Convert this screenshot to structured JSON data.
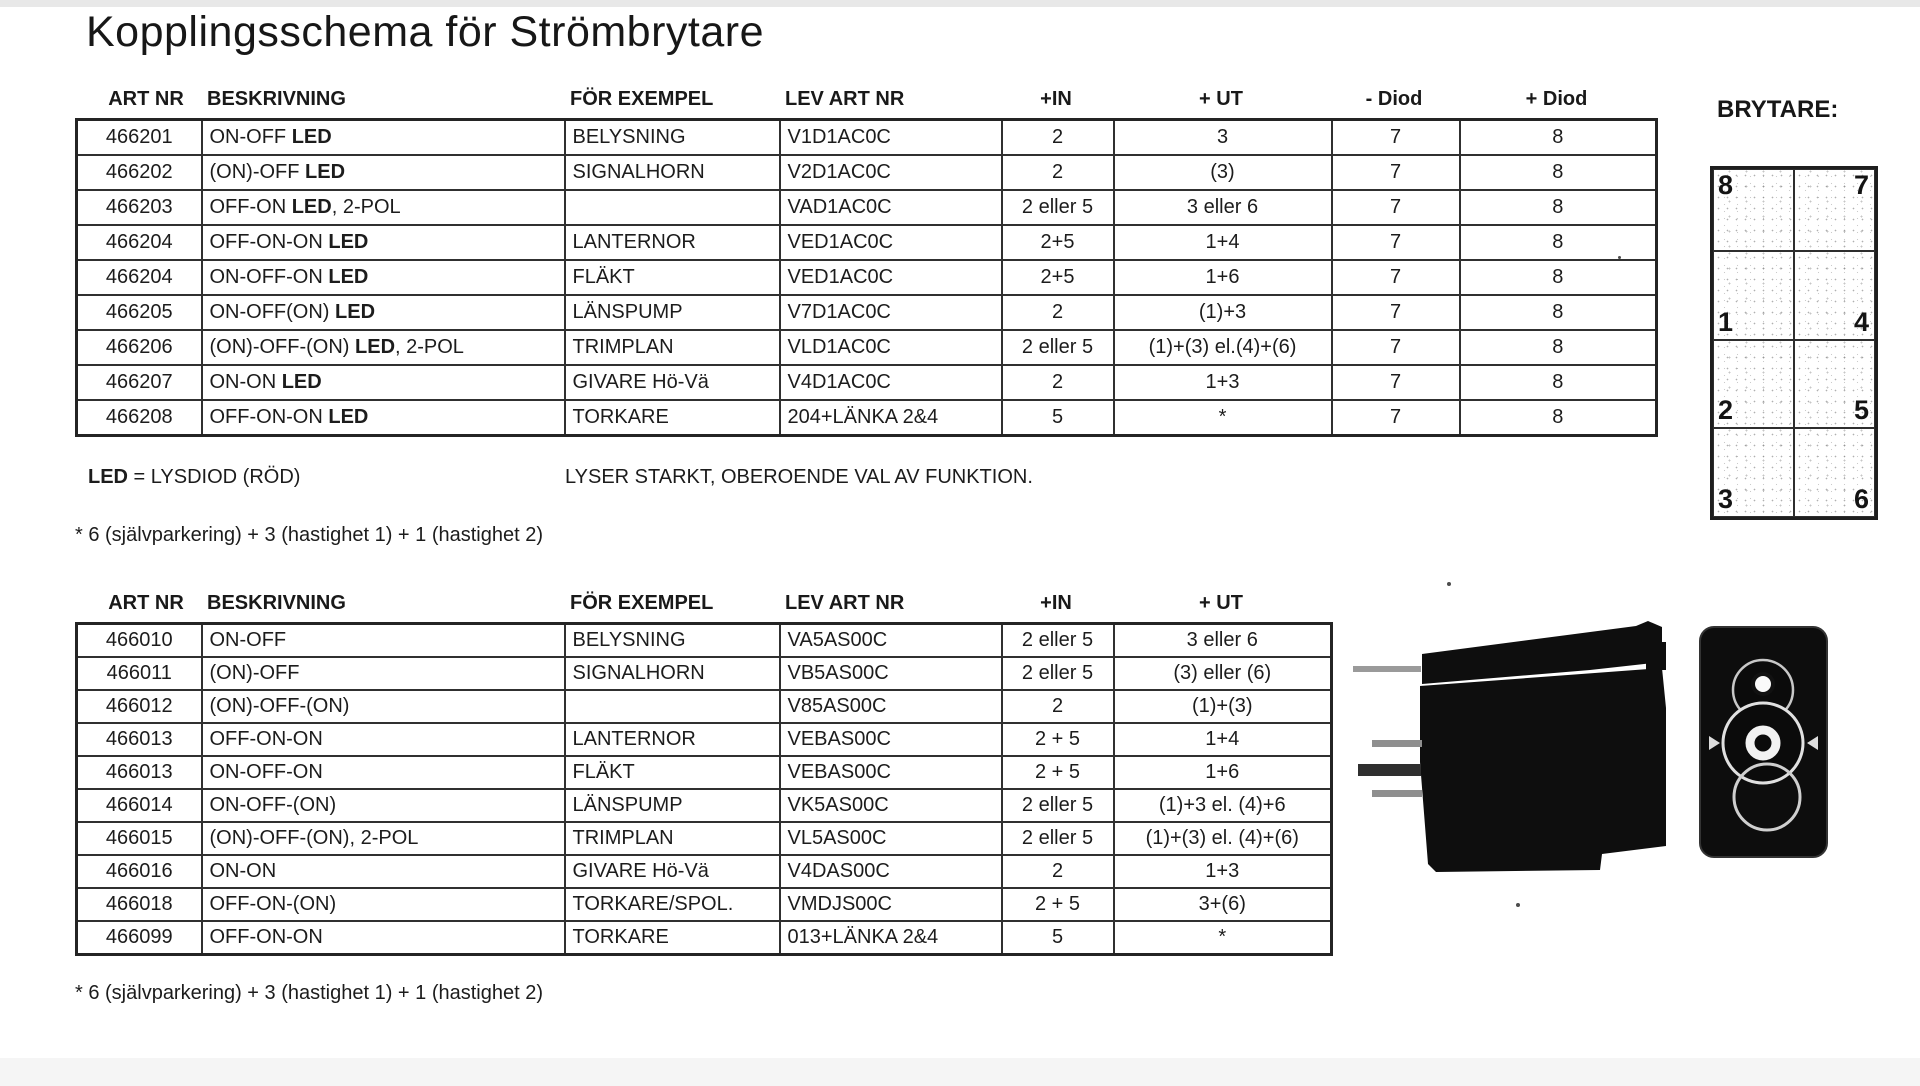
{
  "page": {
    "title": "Kopplingsschema för Strömbrytare"
  },
  "table1": {
    "headers": [
      "ART NR",
      "BESKRIVNING",
      "FÖR EXEMPEL",
      "LEV ART NR",
      "+IN",
      "+ UT",
      "- Diod",
      "+ Diod"
    ],
    "rows": [
      [
        "466201",
        "ON-OFF LED",
        "BELYSNING",
        "V1D1AC0C",
        "2",
        "3",
        "7",
        "8"
      ],
      [
        "466202",
        "(ON)-OFF LED",
        "SIGNALHORN",
        "V2D1AC0C",
        "2",
        "(3)",
        "7",
        "8"
      ],
      [
        "466203",
        "OFF-ON LED, 2-POL",
        "",
        "VAD1AC0C",
        "2 eller 5",
        "3 eller 6",
        "7",
        "8"
      ],
      [
        "466204",
        "OFF-ON-ON LED",
        "LANTERNOR",
        "VED1AC0C",
        "2+5",
        "1+4",
        "7",
        "8"
      ],
      [
        "466204",
        "ON-OFF-ON LED",
        "FLÄKT",
        "VED1AC0C",
        "2+5",
        "1+6",
        "7",
        "8"
      ],
      [
        "466205",
        "ON-OFF(ON) LED",
        "LÄNSPUMP",
        "V7D1AC0C",
        "2",
        "(1)+3",
        "7",
        "8"
      ],
      [
        "466206",
        "(ON)-OFF-(ON) LED, 2-POL",
        "TRIMPLAN",
        "VLD1AC0C",
        "2 eller 5",
        "(1)+(3) el.(4)+(6)",
        "7",
        "8"
      ],
      [
        "466207",
        "ON-ON LED",
        "GIVARE Hö-Vä",
        "V4D1AC0C",
        "2",
        "1+3",
        "7",
        "8"
      ],
      [
        "466208",
        "OFF-ON-ON LED",
        "TORKARE",
        "204+LÄNKA 2&4",
        "5",
        "*",
        "7",
        "8"
      ]
    ]
  },
  "notes": {
    "led_label": "LED = LYSDIOD (RÖD)",
    "led_note": "LYSER STARKT, OBEROENDE VAL AV FUNKTION.",
    "footnote1": "* 6 (självparkering) + 3 (hastighet 1) + 1 (hastighet 2)",
    "footnote2": "* 6 (självparkering) + 3 (hastighet 1) + 1 (hastighet 2)"
  },
  "table2": {
    "headers": [
      "ART NR",
      "BESKRIVNING",
      "FÖR EXEMPEL",
      "LEV ART NR",
      "+IN",
      "+ UT"
    ],
    "rows": [
      [
        "466010",
        "ON-OFF",
        "BELYSNING",
        "VA5AS00C",
        "2 eller 5",
        "3 eller 6"
      ],
      [
        "466011",
        "(ON)-OFF",
        "SIGNALHORN",
        "VB5AS00C",
        "2 eller 5",
        "(3) eller (6)"
      ],
      [
        "466012",
        "(ON)-OFF-(ON)",
        "",
        "V85AS00C",
        "2",
        "(1)+(3)"
      ],
      [
        "466013",
        "OFF-ON-ON",
        "LANTERNOR",
        "VEBAS00C",
        "2 + 5",
        "1+4"
      ],
      [
        "466013",
        "ON-OFF-ON",
        "FLÄKT",
        "VEBAS00C",
        "2 + 5",
        "1+6"
      ],
      [
        "466014",
        "ON-OFF-(ON)",
        "LÄNSPUMP",
        "VK5AS00C",
        "2 eller 5",
        "(1)+3 el. (4)+6"
      ],
      [
        "466015",
        "(ON)-OFF-(ON), 2-POL",
        "TRIMPLAN",
        "VL5AS00C",
        "2 eller 5",
        "(1)+(3) el. (4)+(6)"
      ],
      [
        "466016",
        "ON-ON",
        "GIVARE Hö-Vä",
        "V4DAS00C",
        "2",
        "1+3"
      ],
      [
        "466018",
        "OFF-ON-(ON)",
        "TORKARE/SPOL.",
        "VMDJS00C",
        "2 + 5",
        "3+(6)"
      ],
      [
        "466099",
        "OFF-ON-ON",
        "TORKARE",
        "013+LÄNKA 2&4",
        "5",
        "*"
      ]
    ]
  },
  "brytare": {
    "label": "BRYTARE:",
    "cells": [
      [
        "8",
        "7"
      ],
      [
        "1",
        "4"
      ],
      [
        "2",
        "5"
      ],
      [
        "3",
        "6"
      ]
    ]
  }
}
